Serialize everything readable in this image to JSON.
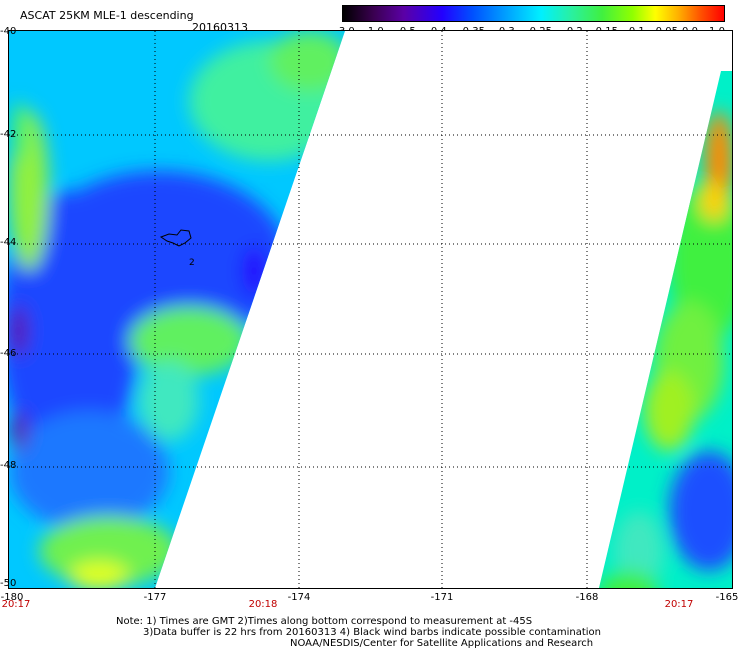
{
  "header": {
    "title": "ASCAT 25KM MLE-1 descending",
    "date": "20160313"
  },
  "colorbar": {
    "labels": [
      "-3.0",
      "-1.0",
      "-0.5",
      "-0.4",
      "-0.35",
      "-0.3",
      "-0.25",
      "-0.2",
      "-0.15",
      "-0.1",
      "-0.05",
      "0.0",
      "1.0"
    ],
    "colors": [
      "#000000",
      "#5b00a6",
      "#2300ff",
      "#0099ff",
      "#00f0ff",
      "#40f040",
      "#ffff00",
      "#ff5000",
      "#ff0000"
    ]
  },
  "axes": {
    "lat_labels": [
      "-40",
      "-42",
      "-44",
      "-46",
      "-48",
      "-50"
    ],
    "lon_labels": [
      "-180",
      "-177",
      "-174",
      "-171",
      "-168",
      "-165"
    ]
  },
  "times": [
    "20:17",
    "20:18",
    "20:17"
  ],
  "map": {
    "island_label": "2"
  },
  "notes": {
    "line1": "Note: 1) Times are GMT 2)Times along bottom correspond to measurement at -45S",
    "line2": "3)Data buffer is 22 hrs from 20160313 4) Black wind barbs indicate possible contamination",
    "line3": "NOAA/NESDIS/Center for Satellite Applications and Research"
  }
}
